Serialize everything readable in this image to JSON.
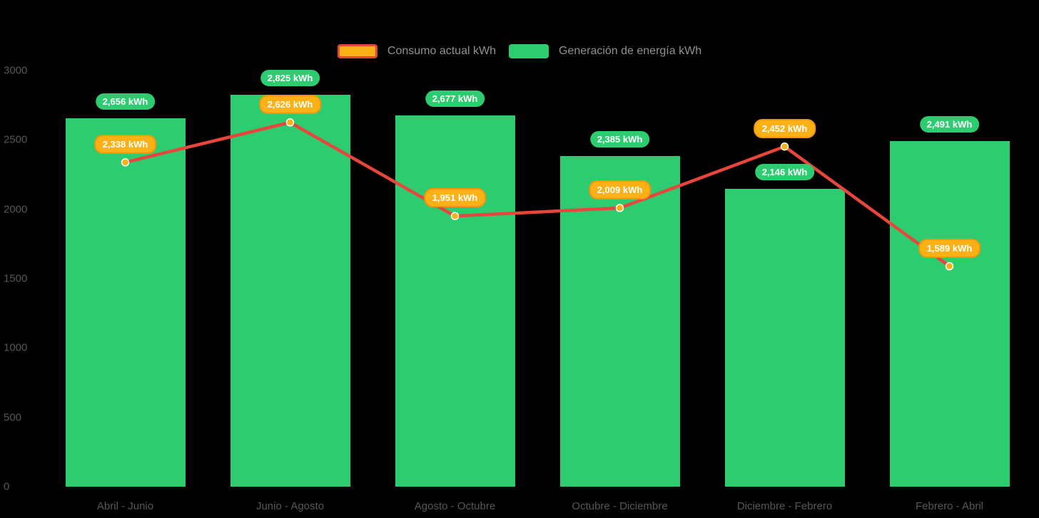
{
  "chart_data": {
    "type": "bar",
    "title": "",
    "categories": [
      "Abril - Junio",
      "Junio - Agosto",
      "Agosto - Octubre",
      "Octubre - Diciembre",
      "Diciembre - Febrero",
      "Febrero - Abril"
    ],
    "series": [
      {
        "name": "Consumo actual kWh",
        "type": "line",
        "color": "#E8453C",
        "marker_color": "#FBB116",
        "values": [
          2338,
          2626,
          1951,
          2009,
          2452,
          1589
        ],
        "labels": [
          "2,338 kWh",
          "2,626 kWh",
          "1,951 kWh",
          "2,009 kWh",
          "2,452 kWh",
          "1,589 kWh"
        ]
      },
      {
        "name": "Generación de energía kWh",
        "type": "bar",
        "color": "#2ECC71",
        "values": [
          2656,
          2825,
          2677,
          2385,
          2146,
          2491
        ],
        "labels": [
          "2,656 kWh",
          "2,825 kWh",
          "2,677 kWh",
          "2,385 kWh",
          "2,146 kWh",
          "2,491 kWh"
        ]
      }
    ],
    "xlabel": "",
    "ylabel": "",
    "ylim": [
      0,
      3000
    ],
    "yticks": [
      0,
      500,
      1000,
      1500,
      2000,
      2500,
      3000
    ],
    "grid": false,
    "legend_position": "top"
  },
  "colors": {
    "background": "#000000",
    "bar_green": "#2ECC71",
    "line_red": "#E8453C",
    "badge_orange": "#FBB116",
    "badge_orange_border": "#F0960C",
    "badge_text": "#FFFFFF",
    "axis_text": "#56575B",
    "legend_text": "#909090"
  }
}
